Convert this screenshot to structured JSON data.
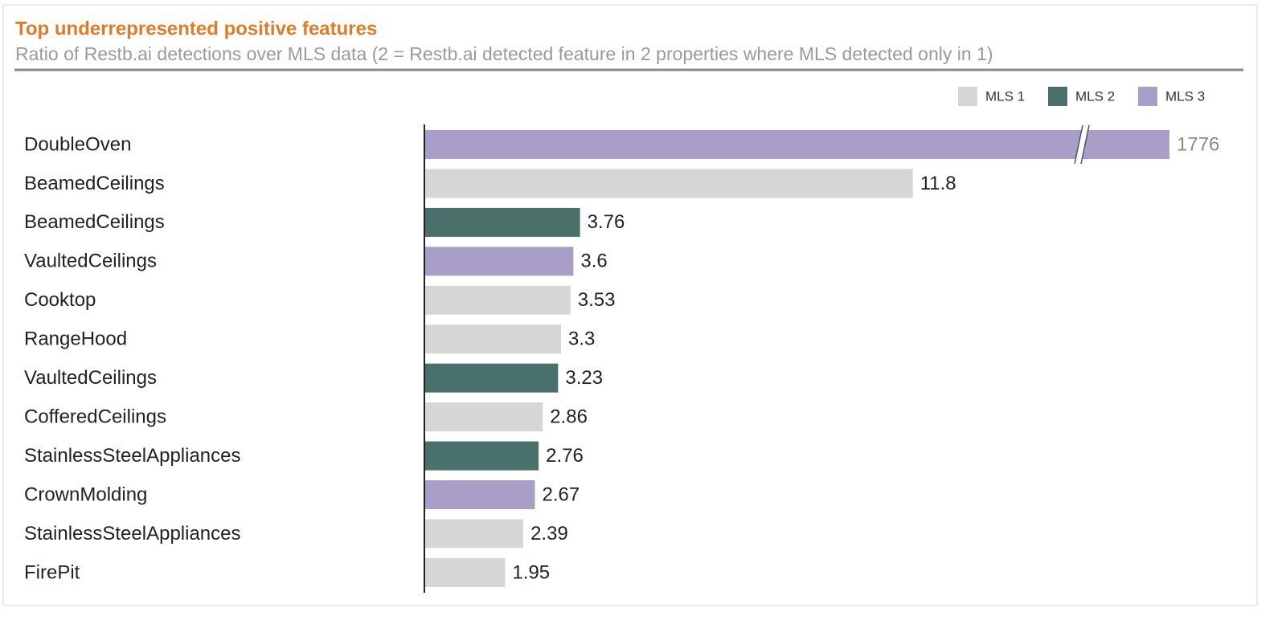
{
  "chart_data": {
    "type": "hbar",
    "title": "Top underrepresented positive features",
    "subtitle": "Ratio of Restb.ai detections over MLS data (2 = Restb.ai detected feature in 2 properties where MLS detected only in 1)",
    "categories": [
      "DoubleOven",
      "BeamedCeilings",
      "BeamedCeilings",
      "VaultedCeilings",
      "Cooktop",
      "RangeHood",
      "VaultedCeilings",
      "CofferedCeilings",
      "StainlessSteelAppliances",
      "CrownMolding",
      "StainlessSteelAppliances",
      "FirePit"
    ],
    "series": [
      {
        "name": "MLS 1",
        "color": "#d6d6d6",
        "values": [
          null,
          11.8,
          null,
          null,
          3.53,
          3.3,
          null,
          2.86,
          null,
          null,
          2.39,
          1.95
        ]
      },
      {
        "name": "MLS 2",
        "color": "#4a706b",
        "values": [
          null,
          null,
          3.76,
          null,
          null,
          null,
          3.23,
          null,
          2.76,
          null,
          null,
          null
        ]
      },
      {
        "name": "MLS 3",
        "color": "#a99ec8",
        "values": [
          1776,
          null,
          null,
          3.6,
          null,
          null,
          null,
          null,
          null,
          2.67,
          null,
          null
        ]
      }
    ],
    "xlim": [
      0,
      18
    ],
    "axis_break": true,
    "legend": "top-right"
  }
}
